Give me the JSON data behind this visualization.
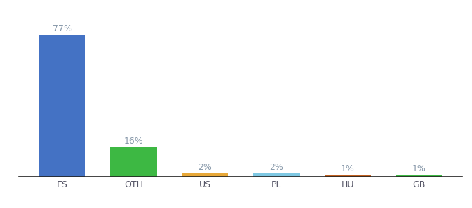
{
  "categories": [
    "ES",
    "OTH",
    "US",
    "PL",
    "HU",
    "GB"
  ],
  "values": [
    77,
    16,
    2,
    2,
    1,
    1
  ],
  "labels": [
    "77%",
    "16%",
    "2%",
    "2%",
    "1%",
    "1%"
  ],
  "bar_colors": [
    "#4472C4",
    "#3DB843",
    "#E8A838",
    "#7EC8E3",
    "#C06020",
    "#3DB843"
  ],
  "background_color": "#ffffff",
  "ylim": [
    0,
    88
  ],
  "bar_width": 0.65,
  "label_fontsize": 9,
  "tick_fontsize": 9,
  "label_color": "#8899AA"
}
